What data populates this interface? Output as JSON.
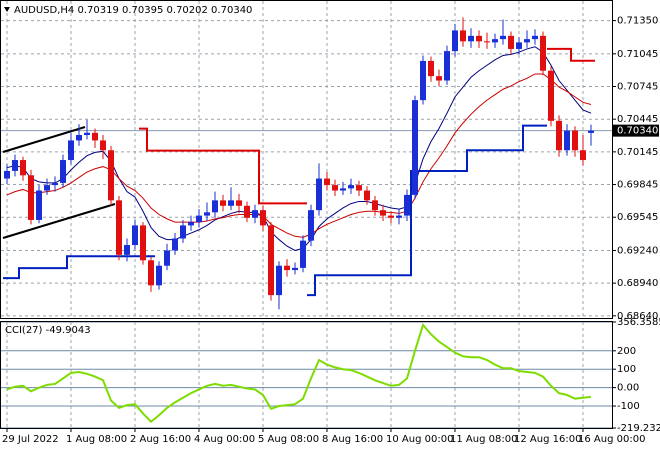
{
  "chart_data": [
    {
      "type": "candlestick",
      "title": "AUDUSD,H4  0.70319 0.70395 0.70202 0.70340",
      "categories": [
        "29 Jul 2022",
        null,
        null,
        null,
        null,
        null,
        null,
        null,
        "1 Aug 08:00",
        null,
        null,
        null,
        null,
        null,
        null,
        null,
        "2 Aug 16:00",
        null,
        null,
        null,
        null,
        null,
        null,
        null,
        "4 Aug 00:00",
        null,
        null,
        null,
        null,
        null,
        null,
        null,
        "5 Aug 08:00",
        null,
        null,
        null,
        null,
        null,
        null,
        null,
        "8 Aug 16:00",
        null,
        null,
        null,
        null,
        null,
        null,
        null,
        "10 Aug 00:00",
        null,
        null,
        null,
        null,
        null,
        null,
        null,
        "11 Aug 08:00",
        null,
        null,
        null,
        null,
        null,
        null,
        null,
        "12 Aug 16:00",
        null,
        null,
        null,
        null,
        null,
        null,
        null,
        "16 Aug 00:00",
        null
      ],
      "open": [
        0.699,
        0.6997,
        0.7007,
        0.6993,
        0.6952,
        0.6979,
        0.6984,
        0.6986,
        0.7007,
        0.7025,
        0.703,
        0.7032,
        0.7025,
        0.7016,
        0.697,
        0.692,
        0.6929,
        0.6947,
        0.6915,
        0.6892,
        0.691,
        0.6924,
        0.6935,
        0.6947,
        0.695,
        0.6956,
        0.6959,
        0.697,
        0.6965,
        0.697,
        0.6965,
        0.6954,
        0.6961,
        0.6947,
        0.6883,
        0.691,
        0.6906,
        0.6908,
        0.6933,
        0.6961,
        0.699,
        0.6984,
        0.6979,
        0.6981,
        0.6984,
        0.6979,
        0.697,
        0.6961,
        0.6956,
        0.6954,
        0.6956,
        0.6975,
        0.7062,
        0.7098,
        0.7084,
        0.708,
        0.7107,
        0.7126,
        0.7116,
        0.7121,
        0.7116,
        0.7115,
        0.7118,
        0.7121,
        0.7109,
        0.7115,
        0.7118,
        0.7121,
        0.7089,
        0.7043,
        0.7016,
        0.7034,
        0.7016,
        0.70319
      ],
      "high": [
        0.7003,
        0.7012,
        0.701,
        0.6998,
        0.6984,
        0.699,
        0.6992,
        0.7012,
        0.7032,
        0.704,
        0.7044,
        0.7036,
        0.703,
        0.702,
        0.6974,
        0.6935,
        0.6952,
        0.695,
        0.6918,
        0.6914,
        0.693,
        0.694,
        0.6952,
        0.6956,
        0.6962,
        0.6968,
        0.6978,
        0.6975,
        0.6982,
        0.6976,
        0.6969,
        0.6966,
        0.6965,
        0.695,
        0.6914,
        0.6916,
        0.6913,
        0.6938,
        0.6966,
        0.7004,
        0.6996,
        0.6989,
        0.6987,
        0.699,
        0.6988,
        0.6983,
        0.6974,
        0.6966,
        0.696,
        0.6962,
        0.698,
        0.7066,
        0.7103,
        0.7102,
        0.709,
        0.7112,
        0.7132,
        0.7138,
        0.7128,
        0.7126,
        0.7124,
        0.7123,
        0.7136,
        0.7125,
        0.712,
        0.7126,
        0.7127,
        0.7125,
        0.7093,
        0.7048,
        0.704,
        0.7038,
        0.703,
        0.70395
      ],
      "low": [
        0.6985,
        0.6992,
        0.6988,
        0.6948,
        0.6949,
        0.6975,
        0.6978,
        0.6982,
        0.7003,
        0.702,
        0.7026,
        0.7018,
        0.7008,
        0.6965,
        0.6915,
        0.6914,
        0.6925,
        0.6911,
        0.6886,
        0.6888,
        0.6906,
        0.692,
        0.6931,
        0.6942,
        0.6945,
        0.6951,
        0.6954,
        0.696,
        0.6961,
        0.6958,
        0.695,
        0.6949,
        0.6942,
        0.6878,
        0.687,
        0.69,
        0.6902,
        0.6904,
        0.6928,
        0.6956,
        0.6979,
        0.6974,
        0.6975,
        0.6976,
        0.6974,
        0.6966,
        0.6956,
        0.6951,
        0.6949,
        0.6948,
        0.6951,
        0.6971,
        0.7058,
        0.7079,
        0.7075,
        0.7076,
        0.7102,
        0.7111,
        0.711,
        0.711,
        0.7109,
        0.711,
        0.7113,
        0.7104,
        0.7104,
        0.711,
        0.7113,
        0.7085,
        0.7038,
        0.701,
        0.7011,
        0.701,
        0.7002,
        0.70202
      ],
      "close": [
        0.6997,
        0.7007,
        0.6993,
        0.6952,
        0.6979,
        0.6984,
        0.6986,
        0.7007,
        0.7025,
        0.703,
        0.7032,
        0.7025,
        0.7016,
        0.697,
        0.692,
        0.6929,
        0.6947,
        0.6915,
        0.6892,
        0.691,
        0.6924,
        0.6935,
        0.6947,
        0.695,
        0.6956,
        0.6959,
        0.697,
        0.6965,
        0.697,
        0.6965,
        0.6954,
        0.6961,
        0.6947,
        0.6883,
        0.691,
        0.6906,
        0.6908,
        0.6933,
        0.6961,
        0.699,
        0.6984,
        0.6979,
        0.6981,
        0.6984,
        0.6979,
        0.697,
        0.6961,
        0.6956,
        0.6954,
        0.6956,
        0.6975,
        0.7062,
        0.7098,
        0.7084,
        0.708,
        0.7107,
        0.7126,
        0.7116,
        0.7121,
        0.7116,
        0.7115,
        0.7118,
        0.7121,
        0.7109,
        0.7115,
        0.7118,
        0.7121,
        0.7089,
        0.7043,
        0.7016,
        0.7034,
        0.7016,
        0.7007,
        0.7034
      ],
      "up_color": "#1a2fd6",
      "down_color": "#e01010",
      "lines": [
        {
          "color": "#000080",
          "values": [
            0.7,
            0.7002,
            0.7,
            0.699,
            0.6987,
            0.6986,
            0.6986,
            0.699,
            0.6998,
            0.7005,
            0.7011,
            0.7014,
            0.7015,
            0.7006,
            0.699,
            0.6978,
            0.6973,
            0.696,
            0.6945,
            0.6937,
            0.6934,
            0.6934,
            0.6937,
            0.694,
            0.6943,
            0.6947,
            0.6952,
            0.6955,
            0.6958,
            0.696,
            0.6959,
            0.6959,
            0.6956,
            0.6941,
            0.6934,
            0.6928,
            0.6924,
            0.6926,
            0.6934,
            0.6946,
            0.6953,
            0.6958,
            0.6963,
            0.6967,
            0.6969,
            0.6969,
            0.6967,
            0.6965,
            0.6963,
            0.6962,
            0.6964,
            0.6985,
            0.7008,
            0.7024,
            0.7036,
            0.705,
            0.7065,
            0.7074,
            0.7083,
            0.7089,
            0.7094,
            0.7099,
            0.7103,
            0.7104,
            0.7106,
            0.7109,
            0.7111,
            0.7106,
            0.7094,
            0.708,
            0.7071,
            0.7062,
            0.7053,
            0.705
          ]
        },
        {
          "color": "#cc0000",
          "values": [
            0.6975,
            0.6978,
            0.698,
            0.6977,
            0.6977,
            0.6978,
            0.6979,
            0.6982,
            0.6986,
            0.6991,
            0.6996,
            0.6999,
            0.7001,
            0.6998,
            0.699,
            0.6983,
            0.6979,
            0.6972,
            0.6963,
            0.6957,
            0.6953,
            0.695,
            0.695,
            0.695,
            0.695,
            0.6951,
            0.6953,
            0.6954,
            0.6956,
            0.6957,
            0.6957,
            0.6957,
            0.6956,
            0.6948,
            0.6944,
            0.694,
            0.6937,
            0.6936,
            0.6939,
            0.6944,
            0.6948,
            0.6951,
            0.6954,
            0.6957,
            0.6959,
            0.696,
            0.696,
            0.6959,
            0.6959,
            0.6958,
            0.696,
            0.6972,
            0.6987,
            0.6999,
            0.7009,
            0.702,
            0.7032,
            0.7041,
            0.7049,
            0.7056,
            0.7062,
            0.7067,
            0.7072,
            0.7075,
            0.7079,
            0.7082,
            0.7086,
            0.7086,
            0.7081,
            0.7074,
            0.707,
            0.7065,
            0.706,
            0.7058
          ]
        },
        {
          "color": "#0020c0",
          "step": true,
          "values": [
            0.68986,
            0.68986,
            0.69078,
            0.69078,
            0.69078,
            0.69078,
            0.69078,
            0.69078,
            0.69187,
            0.69187,
            0.69187,
            0.69187,
            0.69187,
            0.69187,
            0.69187,
            0.69187,
            0.69187,
            0.69187,
            0.69187,
            null,
            null,
            null,
            null,
            null,
            null,
            null,
            null,
            null,
            null,
            null,
            null,
            null,
            null,
            null,
            null,
            null,
            null,
            null,
            0.6883,
            0.69013,
            0.69013,
            0.69013,
            0.69013,
            0.69013,
            0.69013,
            0.69013,
            0.69013,
            0.69013,
            0.69013,
            0.69013,
            0.69013,
            0.6997,
            0.6997,
            0.6997,
            0.6997,
            0.6997,
            0.6997,
            0.6997,
            0.7016,
            0.7016,
            0.7016,
            0.7016,
            0.7016,
            0.7016,
            0.7016,
            0.70386,
            0.70386,
            0.70386,
            null,
            null,
            null,
            null,
            null,
            null
          ]
        },
        {
          "color": "#dd0000",
          "step": true,
          "values": [
            null,
            null,
            null,
            null,
            null,
            null,
            null,
            null,
            null,
            null,
            null,
            null,
            null,
            null,
            null,
            null,
            null,
            0.70359,
            0.70157,
            0.70157,
            0.70157,
            0.70157,
            0.70157,
            0.70157,
            0.70157,
            0.70157,
            0.70157,
            0.70157,
            0.70157,
            0.70157,
            0.70157,
            0.70157,
            0.69672,
            0.69672,
            0.69672,
            0.69672,
            0.69672,
            0.69672,
            null,
            null,
            null,
            null,
            null,
            null,
            null,
            null,
            null,
            null,
            null,
            null,
            null,
            null,
            null,
            null,
            null,
            null,
            null,
            null,
            null,
            null,
            null,
            null,
            null,
            null,
            null,
            null,
            null,
            null,
            0.71091,
            0.71091,
            0.71091,
            0.70981,
            0.70981,
            0.70981
          ]
        }
      ],
      "ylim": [
        0.6862,
        0.7153
      ],
      "yticks": [
        {
          "value": 0.7135,
          "label": "0.71350"
        },
        0.71045,
        0.70745,
        0.70445,
        0.70145,
        0.69845,
        0.69545,
        {
          "value": 0.6924,
          "label": "0.69240"
        },
        {
          "value": 0.6894,
          "label": "0.68940"
        },
        {
          "value": 0.6864,
          "label": "0.68640"
        }
      ],
      "current_price": {
        "value": 0.7034,
        "label": "0.70340"
      },
      "grid": true
    },
    {
      "type": "line",
      "title": "CCI(27) -49.9043",
      "color": "#7ddc00",
      "values": [
        -10,
        5,
        10,
        -20,
        0,
        15,
        20,
        50,
        80,
        85,
        75,
        60,
        40,
        -70,
        -110,
        -95,
        -90,
        -140,
        -185,
        -150,
        -110,
        -80,
        -55,
        -30,
        -10,
        10,
        20,
        10,
        15,
        5,
        -5,
        -10,
        -40,
        -115,
        -100,
        -95,
        -90,
        -60,
        50,
        150,
        125,
        110,
        100,
        95,
        80,
        60,
        40,
        25,
        10,
        15,
        50,
        200,
        340,
        290,
        250,
        220,
        190,
        170,
        165,
        165,
        150,
        125,
        105,
        105,
        90,
        85,
        80,
        60,
        10,
        -30,
        -40,
        -60,
        -55,
        -49.9043
      ],
      "ylim": [
        -219.2329,
        356.3585
      ],
      "yticks": [
        356.3585,
        200,
        100,
        {
          "value": 0,
          "label": "0.00"
        },
        -100,
        -219.2329
      ]
    }
  ]
}
